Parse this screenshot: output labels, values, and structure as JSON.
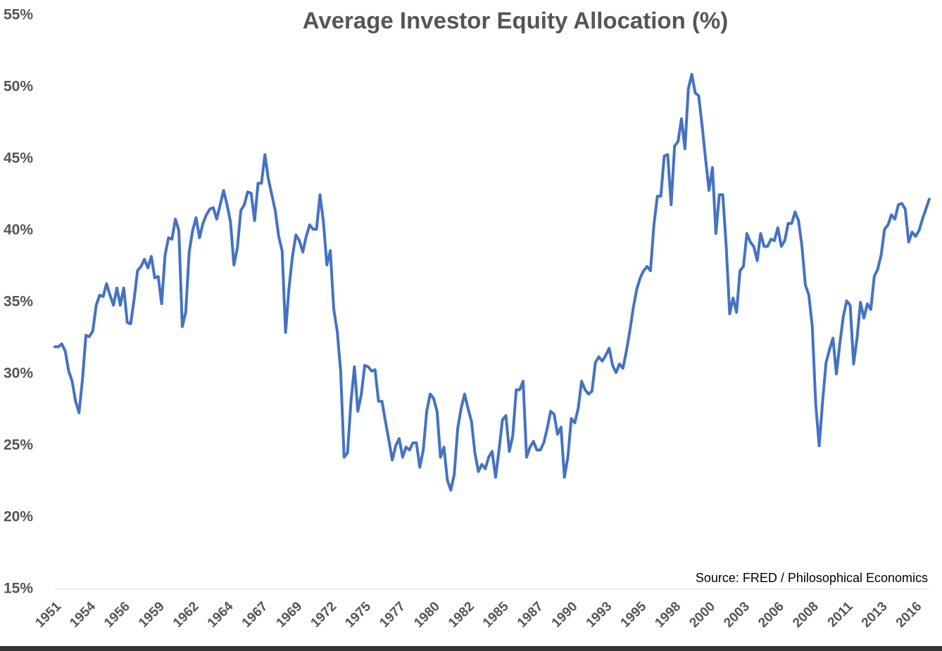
{
  "chart_data": {
    "type": "line",
    "title": "Average Investor Equity Allocation (%)",
    "annotation": "Source: FRED / Philosophical Economics",
    "ylim": [
      15,
      55
    ],
    "yticks": [
      {
        "value": 15,
        "label": "15%"
      },
      {
        "value": 20,
        "label": "20%"
      },
      {
        "value": 25,
        "label": "25%"
      },
      {
        "value": 30,
        "label": "30%"
      },
      {
        "value": 35,
        "label": "35%"
      },
      {
        "value": 40,
        "label": "40%"
      },
      {
        "value": 45,
        "label": "45%"
      },
      {
        "value": 50,
        "label": "50%"
      },
      {
        "value": 55,
        "label": "55%"
      }
    ],
    "categories": [
      "1951",
      null,
      null,
      null,
      null,
      null,
      null,
      null,
      null,
      null,
      "1954",
      null,
      null,
      null,
      null,
      null,
      null,
      null,
      null,
      null,
      "1956",
      null,
      null,
      null,
      null,
      null,
      null,
      null,
      null,
      null,
      "1959",
      null,
      null,
      null,
      null,
      null,
      null,
      null,
      null,
      null,
      "1962",
      null,
      null,
      null,
      null,
      null,
      null,
      null,
      null,
      null,
      "1964",
      null,
      null,
      null,
      null,
      null,
      null,
      null,
      null,
      null,
      "1967",
      null,
      null,
      null,
      null,
      null,
      null,
      null,
      null,
      null,
      "1969",
      null,
      null,
      null,
      null,
      null,
      null,
      null,
      null,
      null,
      "1972",
      null,
      null,
      null,
      null,
      null,
      null,
      null,
      null,
      null,
      "1975",
      null,
      null,
      null,
      null,
      null,
      null,
      null,
      null,
      null,
      "1977",
      null,
      null,
      null,
      null,
      null,
      null,
      null,
      null,
      null,
      "1980",
      null,
      null,
      null,
      null,
      null,
      null,
      null,
      null,
      null,
      "1982",
      null,
      null,
      null,
      null,
      null,
      null,
      null,
      null,
      null,
      "1985",
      null,
      null,
      null,
      null,
      null,
      null,
      null,
      null,
      null,
      "1987",
      null,
      null,
      null,
      null,
      null,
      null,
      null,
      null,
      null,
      "1990",
      null,
      null,
      null,
      null,
      null,
      null,
      null,
      null,
      null,
      "1993",
      null,
      null,
      null,
      null,
      null,
      null,
      null,
      null,
      null,
      "1995",
      null,
      null,
      null,
      null,
      null,
      null,
      null,
      null,
      null,
      "1998",
      null,
      null,
      null,
      null,
      null,
      null,
      null,
      null,
      null,
      "2000",
      null,
      null,
      null,
      null,
      null,
      null,
      null,
      null,
      null,
      "2003",
      null,
      null,
      null,
      null,
      null,
      null,
      null,
      null,
      null,
      "2006",
      null,
      null,
      null,
      null,
      null,
      null,
      null,
      null,
      null,
      "2008",
      null,
      null,
      null,
      null,
      null,
      null,
      null,
      null,
      null,
      "2011",
      null,
      null,
      null,
      null,
      null,
      null,
      null,
      null,
      null,
      "2013",
      null,
      null,
      null,
      null,
      null,
      null,
      null,
      null,
      null,
      "2016",
      null,
      null,
      null,
      null
    ],
    "series": [
      {
        "color": "#4472c4",
        "values": [
          31.9,
          31.9,
          32.1,
          31.6,
          30.2,
          29.5,
          28.1,
          27.3,
          29.6,
          32.7,
          32.6,
          33.0,
          34.8,
          35.5,
          35.4,
          36.3,
          35.5,
          34.8,
          36.0,
          34.8,
          36.0,
          33.6,
          33.5,
          35.2,
          37.2,
          37.5,
          38.0,
          37.4,
          38.2,
          36.7,
          36.8,
          34.9,
          38.3,
          39.5,
          39.4,
          40.8,
          40.0,
          33.3,
          34.3,
          38.5,
          40.0,
          40.9,
          39.5,
          40.5,
          41.1,
          41.5,
          41.6,
          40.8,
          41.8,
          42.8,
          41.8,
          40.6,
          37.6,
          38.8,
          41.4,
          41.8,
          42.7,
          42.6,
          40.7,
          43.3,
          43.3,
          45.3,
          43.6,
          42.5,
          41.4,
          39.6,
          38.6,
          32.9,
          36.0,
          38.2,
          39.7,
          39.3,
          38.5,
          39.6,
          40.4,
          40.1,
          40.1,
          42.5,
          40.6,
          37.6,
          38.6,
          34.5,
          33.0,
          30.2,
          24.2,
          24.5,
          28.1,
          30.5,
          27.4,
          28.6,
          30.6,
          30.5,
          30.2,
          30.3,
          28.1,
          28.1,
          26.7,
          25.4,
          24.0,
          25.0,
          25.5,
          24.2,
          24.9,
          24.7,
          25.2,
          25.2,
          23.5,
          24.7,
          27.4,
          28.6,
          28.3,
          27.4,
          24.2,
          24.9,
          22.6,
          21.9,
          23.0,
          26.2,
          27.6,
          28.6,
          27.6,
          26.7,
          24.5,
          23.2,
          23.7,
          23.4,
          24.2,
          24.6,
          22.8,
          24.7,
          26.8,
          27.1,
          24.6,
          25.7,
          28.9,
          28.9,
          29.5,
          24.2,
          24.9,
          25.3,
          24.7,
          24.7,
          25.2,
          26.2,
          27.4,
          27.2,
          25.8,
          26.3,
          22.8,
          24.2,
          26.9,
          26.6,
          27.6,
          29.5,
          28.9,
          28.6,
          28.8,
          30.8,
          31.2,
          30.9,
          31.3,
          31.8,
          30.6,
          30.1,
          30.7,
          30.4,
          31.6,
          33.0,
          34.6,
          35.9,
          36.7,
          37.2,
          37.5,
          37.2,
          40.4,
          42.4,
          42.4,
          45.2,
          45.3,
          41.8,
          45.9,
          46.2,
          47.8,
          45.7,
          49.9,
          50.9,
          49.6,
          49.4,
          47.3,
          45.0,
          42.8,
          44.4,
          39.8,
          42.5,
          42.5,
          38.9,
          34.2,
          35.3,
          34.3,
          37.2,
          37.5,
          39.8,
          39.2,
          38.9,
          37.9,
          39.8,
          38.9,
          38.9,
          39.4,
          39.3,
          40.2,
          38.9,
          39.3,
          40.5,
          40.5,
          41.3,
          40.7,
          38.9,
          36.2,
          35.5,
          33.3,
          27.9,
          25.0,
          28.1,
          30.8,
          31.7,
          32.5,
          30.0,
          32.1,
          34.0,
          35.1,
          34.8,
          30.7,
          32.5,
          35.0,
          33.9,
          34.9,
          34.5,
          36.8,
          37.3,
          38.3,
          40.1,
          40.4,
          41.1,
          40.8,
          41.8,
          41.9,
          41.5,
          39.2,
          39.9,
          39.6,
          40.0,
          40.8,
          41.5,
          42.2
        ]
      }
    ]
  }
}
